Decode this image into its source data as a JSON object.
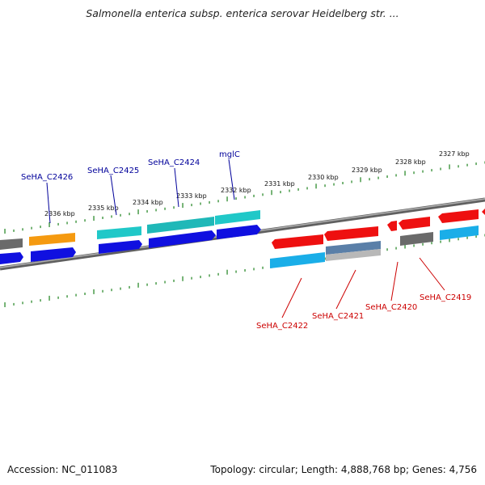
{
  "title": "Salmonella enterica subsp. enterica serovar Heidelberg str. ...",
  "footer": {
    "accession": "Accession: NC_011083",
    "stats": "Topology: circular; Length: 4,888,768 bp; Genes: 4,756"
  },
  "colors": {
    "backbone": "#808080",
    "tick": "#2e8b2e",
    "forward_label": "#00009a",
    "reverse_label": "#cc0000",
    "blue": "#1010e0",
    "cyan": "#20c8c8",
    "orange": "#f59a10",
    "gray": "#6a6a6a",
    "red": "#ee1010",
    "skyblue": "#1aaee8",
    "steel": "#5a7fa8",
    "silver": "#b8b8b8"
  },
  "ticks": {
    "labels": [
      "2336 kbp",
      "2335 kbp",
      "2334 kbp",
      "2333 kbp",
      "2332 kbp",
      "2331 kbp",
      "2330 kbp",
      "2329 kbp",
      "2328 kbp",
      "2327 kbp"
    ]
  },
  "gene_labels": {
    "forward": [
      "SeHA_C2426",
      "SeHA_C2425",
      "SeHA_C2424",
      "mglC"
    ],
    "reverse": [
      "SeHA_C2422",
      "SeHA_C2421",
      "SeHA_C2420",
      "SeHA_C2419"
    ]
  }
}
